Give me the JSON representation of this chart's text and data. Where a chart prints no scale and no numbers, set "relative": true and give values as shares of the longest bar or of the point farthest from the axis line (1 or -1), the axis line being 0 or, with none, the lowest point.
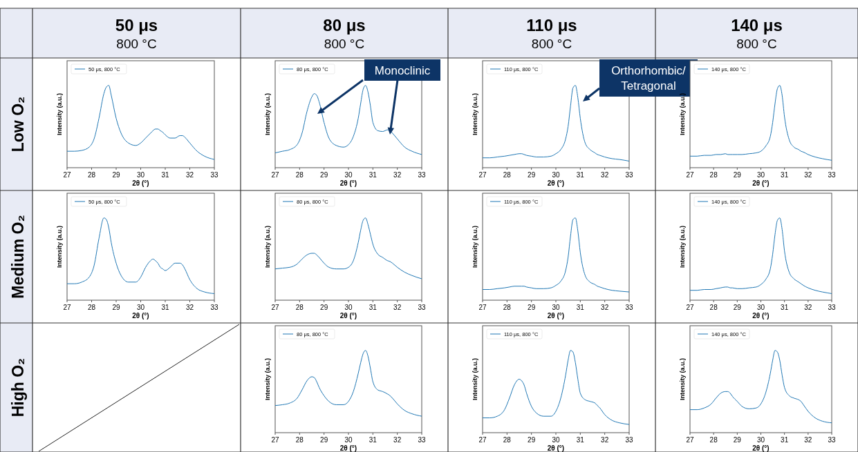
{
  "chart_data": [
    {
      "type": "line",
      "title": "50 μs",
      "subtitle": "800 °C",
      "annotations": [
        "Low O₂"
      ],
      "relative": true,
      "xlabel": "2θ (°)",
      "ylabel": "Intensity (a.u.)",
      "xlim": [
        27,
        33
      ],
      "xticks": [
        27,
        28,
        29,
        30,
        31,
        32,
        33
      ],
      "legend": "top left",
      "x": [
        27,
        27.3,
        27.6,
        27.9,
        28.1,
        28.3,
        28.5,
        28.6,
        28.7,
        28.8,
        29,
        29.2,
        29.5,
        29.8,
        30,
        30.2,
        30.4,
        30.5,
        30.6,
        30.7,
        30.8,
        30.9,
        31,
        31.2,
        31.4,
        31.6,
        31.7,
        31.8,
        32,
        32.3,
        32.6,
        33
      ],
      "series": [
        {
          "name": "50 μs, 800 °C",
          "color": "#1f77b4",
          "values": [
            0.2,
            0.2,
            0.21,
            0.25,
            0.35,
            0.6,
            0.9,
            0.98,
            1,
            0.88,
            0.6,
            0.42,
            0.3,
            0.27,
            0.3,
            0.36,
            0.42,
            0.45,
            0.47,
            0.47,
            0.45,
            0.43,
            0.4,
            0.36,
            0.36,
            0.39,
            0.39,
            0.37,
            0.3,
            0.2,
            0.14,
            0.1
          ]
        }
      ]
    },
    {
      "type": "line",
      "title": "80 μs",
      "subtitle": "800 °C",
      "relative": true,
      "xlabel": "2θ (°)",
      "ylabel": "Intensity (a.u.)",
      "xlim": [
        27,
        33
      ],
      "xticks": [
        27,
        28,
        29,
        30,
        31,
        32,
        33
      ],
      "legend": "top left",
      "annotations": [
        "Monoclinic"
      ],
      "x": [
        27,
        27.3,
        27.6,
        27.9,
        28.1,
        28.3,
        28.5,
        28.6,
        28.7,
        28.8,
        29,
        29.2,
        29.5,
        29.8,
        30,
        30.2,
        30.4,
        30.5,
        30.6,
        30.7,
        30.8,
        30.9,
        31,
        31.2,
        31.4,
        31.6,
        31.7,
        31.8,
        32,
        32.3,
        32.6,
        33
      ],
      "series": [
        {
          "name": "80 μs, 800 °C",
          "color": "#1f77b4",
          "values": [
            0.18,
            0.2,
            0.22,
            0.28,
            0.42,
            0.68,
            0.86,
            0.9,
            0.88,
            0.8,
            0.55,
            0.36,
            0.27,
            0.25,
            0.28,
            0.38,
            0.6,
            0.78,
            0.95,
            1,
            0.92,
            0.75,
            0.55,
            0.45,
            0.44,
            0.46,
            0.45,
            0.42,
            0.35,
            0.25,
            0.2,
            0.16
          ]
        }
      ]
    },
    {
      "type": "line",
      "title": "110 μs",
      "subtitle": "800 °C",
      "relative": true,
      "xlabel": "2θ (°)",
      "ylabel": "Intensity (a.u.)",
      "xlim": [
        27,
        33
      ],
      "xticks": [
        27,
        28,
        29,
        30,
        31,
        32,
        33
      ],
      "legend": "top left",
      "annotations": [
        "Orthorhombic/Tetragonal"
      ],
      "x": [
        27,
        27.3,
        27.6,
        27.9,
        28.1,
        28.3,
        28.5,
        28.6,
        28.7,
        28.8,
        29,
        29.2,
        29.5,
        29.8,
        30,
        30.2,
        30.4,
        30.5,
        30.6,
        30.7,
        30.8,
        30.9,
        31,
        31.2,
        31.4,
        31.6,
        31.7,
        31.8,
        32,
        32.3,
        32.6,
        33
      ],
      "series": [
        {
          "name": "110 μs, 800 °C",
          "color": "#1f77b4",
          "values": [
            0.12,
            0.12,
            0.13,
            0.14,
            0.15,
            0.16,
            0.17,
            0.17,
            0.16,
            0.15,
            0.14,
            0.13,
            0.13,
            0.14,
            0.17,
            0.22,
            0.35,
            0.5,
            0.75,
            0.97,
            1,
            0.85,
            0.6,
            0.3,
            0.22,
            0.18,
            0.16,
            0.15,
            0.13,
            0.11,
            0.1,
            0.08
          ]
        }
      ]
    },
    {
      "type": "line",
      "title": "140 μs",
      "subtitle": "800 °C",
      "relative": true,
      "xlabel": "2θ (°)",
      "ylabel": "Intensity (a.u.)",
      "xlim": [
        27,
        33
      ],
      "xticks": [
        27,
        28,
        29,
        30,
        31,
        32,
        33
      ],
      "legend": "top left",
      "x": [
        27,
        27.3,
        27.6,
        27.9,
        28.1,
        28.3,
        28.5,
        28.6,
        28.7,
        28.8,
        29,
        29.2,
        29.5,
        29.8,
        30,
        30.2,
        30.4,
        30.5,
        30.6,
        30.7,
        30.8,
        30.9,
        31,
        31.2,
        31.4,
        31.6,
        31.7,
        31.8,
        32,
        32.3,
        32.6,
        33
      ],
      "series": [
        {
          "name": "140 μs, 800 °C",
          "color": "#1f77b4",
          "values": [
            0.14,
            0.14,
            0.15,
            0.15,
            0.16,
            0.16,
            0.17,
            0.16,
            0.16,
            0.16,
            0.16,
            0.16,
            0.17,
            0.18,
            0.2,
            0.26,
            0.38,
            0.55,
            0.78,
            0.96,
            1,
            0.88,
            0.62,
            0.34,
            0.25,
            0.22,
            0.2,
            0.19,
            0.16,
            0.13,
            0.11,
            0.09
          ]
        }
      ]
    },
    {
      "type": "line",
      "annotations": [
        "Medium O₂"
      ],
      "relative": true,
      "xlabel": "2θ (°)",
      "ylabel": "Intensity (a.u.)",
      "xlim": [
        27,
        33
      ],
      "xticks": [
        27,
        28,
        29,
        30,
        31,
        32,
        33
      ],
      "legend": "top left",
      "x": [
        27,
        27.3,
        27.6,
        27.9,
        28.1,
        28.3,
        28.5,
        28.6,
        28.7,
        28.8,
        29,
        29.2,
        29.5,
        29.8,
        30,
        30.2,
        30.4,
        30.5,
        30.6,
        30.7,
        30.8,
        30.9,
        31,
        31.2,
        31.4,
        31.6,
        31.7,
        31.8,
        32,
        32.3,
        32.6,
        33
      ],
      "series": [
        {
          "name": "50 μs, 800 °C",
          "color": "#1f77b4",
          "values": [
            0.2,
            0.2,
            0.22,
            0.28,
            0.42,
            0.75,
            1,
            0.98,
            0.88,
            0.7,
            0.45,
            0.3,
            0.22,
            0.22,
            0.28,
            0.4,
            0.48,
            0.5,
            0.48,
            0.45,
            0.4,
            0.38,
            0.36,
            0.4,
            0.45,
            0.45,
            0.43,
            0.38,
            0.25,
            0.14,
            0.1,
            0.08
          ]
        }
      ]
    },
    {
      "type": "line",
      "relative": true,
      "xlabel": "2θ (°)",
      "ylabel": "Intensity (a.u.)",
      "xlim": [
        27,
        33
      ],
      "xticks": [
        27,
        28,
        29,
        30,
        31,
        32,
        33
      ],
      "legend": "top left",
      "x": [
        27,
        27.3,
        27.6,
        27.9,
        28.1,
        28.3,
        28.5,
        28.6,
        28.7,
        28.8,
        29,
        29.2,
        29.5,
        29.8,
        30,
        30.2,
        30.4,
        30.5,
        30.6,
        30.7,
        30.8,
        30.9,
        31,
        31.2,
        31.4,
        31.6,
        31.7,
        31.8,
        32,
        32.3,
        32.6,
        33
      ],
      "series": [
        {
          "name": "80 μs, 800 °C",
          "color": "#1f77b4",
          "values": [
            0.38,
            0.39,
            0.4,
            0.44,
            0.5,
            0.55,
            0.57,
            0.57,
            0.55,
            0.52,
            0.45,
            0.4,
            0.38,
            0.38,
            0.4,
            0.48,
            0.7,
            0.85,
            0.97,
            1,
            0.92,
            0.8,
            0.68,
            0.56,
            0.52,
            0.48,
            0.47,
            0.45,
            0.4,
            0.34,
            0.3,
            0.26
          ]
        }
      ]
    },
    {
      "type": "line",
      "relative": true,
      "xlabel": "2θ (°)",
      "ylabel": "Intensity (a.u.)",
      "xlim": [
        27,
        33
      ],
      "xticks": [
        27,
        28,
        29,
        30,
        31,
        32,
        33
      ],
      "legend": "top left",
      "x": [
        27,
        27.3,
        27.6,
        27.9,
        28.1,
        28.3,
        28.5,
        28.6,
        28.7,
        28.8,
        29,
        29.2,
        29.5,
        29.8,
        30,
        30.2,
        30.4,
        30.5,
        30.6,
        30.7,
        30.8,
        30.9,
        31,
        31.2,
        31.4,
        31.6,
        31.7,
        31.8,
        32,
        32.3,
        32.6,
        33
      ],
      "series": [
        {
          "name": "110 μs, 800 °C",
          "color": "#1f77b4",
          "values": [
            0.13,
            0.13,
            0.14,
            0.15,
            0.16,
            0.17,
            0.17,
            0.17,
            0.17,
            0.16,
            0.15,
            0.14,
            0.14,
            0.15,
            0.18,
            0.23,
            0.36,
            0.52,
            0.78,
            0.98,
            1,
            0.84,
            0.58,
            0.3,
            0.22,
            0.19,
            0.17,
            0.16,
            0.14,
            0.12,
            0.11,
            0.1
          ]
        }
      ]
    },
    {
      "type": "line",
      "relative": true,
      "xlabel": "2θ (°)",
      "ylabel": "Intensity (a.u.)",
      "xlim": [
        27,
        33
      ],
      "xticks": [
        27,
        28,
        29,
        30,
        31,
        32,
        33
      ],
      "legend": "top left",
      "x": [
        27,
        27.3,
        27.6,
        27.9,
        28.1,
        28.3,
        28.5,
        28.6,
        28.7,
        28.8,
        29,
        29.2,
        29.5,
        29.8,
        30,
        30.2,
        30.4,
        30.5,
        30.6,
        30.7,
        30.8,
        30.9,
        31,
        31.2,
        31.4,
        31.6,
        31.7,
        31.8,
        32,
        32.3,
        32.6,
        33
      ],
      "series": [
        {
          "name": "140 μs, 800 °C",
          "color": "#1f77b4",
          "values": [
            0.12,
            0.12,
            0.13,
            0.13,
            0.14,
            0.15,
            0.16,
            0.16,
            0.15,
            0.15,
            0.14,
            0.14,
            0.15,
            0.16,
            0.19,
            0.25,
            0.38,
            0.56,
            0.8,
            0.97,
            1,
            0.86,
            0.6,
            0.34,
            0.26,
            0.22,
            0.2,
            0.18,
            0.15,
            0.12,
            0.1,
            0.08
          ]
        }
      ]
    },
    {
      "type": "line",
      "annotations": [
        "High O₂"
      ],
      "relative": true,
      "xlabel": "2θ (°)",
      "ylabel": "Intensity (a.u.)",
      "xlim": [
        27,
        33
      ],
      "xticks": [
        27,
        28,
        29,
        30,
        31,
        32,
        33
      ],
      "legend": "top left",
      "x": [
        27,
        27.3,
        27.6,
        27.9,
        28.1,
        28.3,
        28.5,
        28.6,
        28.7,
        28.8,
        29,
        29.2,
        29.5,
        29.8,
        30,
        30.2,
        30.4,
        30.5,
        30.6,
        30.7,
        30.8,
        30.9,
        31,
        31.2,
        31.4,
        31.6,
        31.7,
        31.8,
        32,
        32.3,
        32.6,
        33
      ],
      "series": [
        {
          "name": "80 μs, 800 °C",
          "color": "#1f77b4",
          "values": [
            0.33,
            0.34,
            0.36,
            0.42,
            0.52,
            0.63,
            0.68,
            0.67,
            0.62,
            0.55,
            0.45,
            0.38,
            0.34,
            0.34,
            0.38,
            0.5,
            0.72,
            0.85,
            0.96,
            1,
            0.93,
            0.78,
            0.62,
            0.52,
            0.5,
            0.47,
            0.45,
            0.42,
            0.35,
            0.27,
            0.23,
            0.2
          ]
        }
      ]
    },
    {
      "type": "line",
      "relative": true,
      "xlabel": "2θ (°)",
      "ylabel": "Intensity (a.u.)",
      "xlim": [
        27,
        33
      ],
      "xticks": [
        27,
        28,
        29,
        30,
        31,
        32,
        33
      ],
      "legend": "top left",
      "x": [
        27,
        27.3,
        27.6,
        27.9,
        28.1,
        28.3,
        28.5,
        28.6,
        28.7,
        28.8,
        29,
        29.2,
        29.5,
        29.8,
        30,
        30.2,
        30.4,
        30.5,
        30.6,
        30.7,
        30.8,
        30.9,
        31,
        31.2,
        31.4,
        31.6,
        31.7,
        31.8,
        32,
        32.3,
        32.6,
        33
      ],
      "series": [
        {
          "name": "110 μs, 800 °C",
          "color": "#1f77b4",
          "values": [
            0.18,
            0.18,
            0.2,
            0.28,
            0.42,
            0.58,
            0.65,
            0.63,
            0.58,
            0.48,
            0.32,
            0.24,
            0.2,
            0.2,
            0.26,
            0.42,
            0.7,
            0.88,
            1,
            0.98,
            0.85,
            0.65,
            0.48,
            0.4,
            0.38,
            0.36,
            0.33,
            0.3,
            0.22,
            0.15,
            0.12,
            0.1
          ]
        }
      ]
    },
    {
      "type": "line",
      "relative": true,
      "xlabel": "2θ (°)",
      "ylabel": "Intensity (a.u.)",
      "xlim": [
        27,
        33
      ],
      "xticks": [
        27,
        28,
        29,
        30,
        31,
        32,
        33
      ],
      "legend": "top left",
      "x": [
        27,
        27.3,
        27.6,
        27.9,
        28.1,
        28.3,
        28.5,
        28.6,
        28.7,
        28.8,
        29,
        29.2,
        29.5,
        29.8,
        30,
        30.2,
        30.4,
        30.5,
        30.6,
        30.7,
        30.8,
        30.9,
        31,
        31.2,
        31.4,
        31.6,
        31.7,
        31.8,
        32,
        32.3,
        32.6,
        33
      ],
      "series": [
        {
          "name": "140 μs, 800 °C",
          "color": "#1f77b4",
          "values": [
            0.28,
            0.28,
            0.3,
            0.35,
            0.42,
            0.48,
            0.5,
            0.5,
            0.48,
            0.44,
            0.38,
            0.32,
            0.29,
            0.3,
            0.35,
            0.48,
            0.72,
            0.88,
            1,
            0.98,
            0.88,
            0.7,
            0.55,
            0.45,
            0.42,
            0.4,
            0.38,
            0.34,
            0.26,
            0.18,
            0.14,
            0.12
          ]
        }
      ]
    }
  ]
}
